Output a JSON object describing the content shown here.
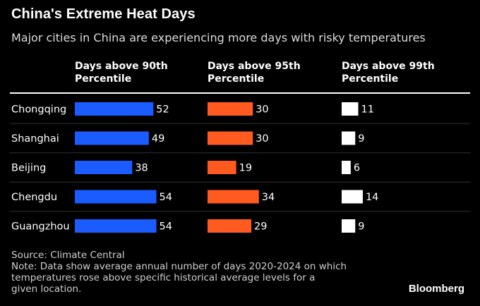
{
  "header": {
    "title": "China's Extreme Heat Days",
    "subtitle": "Major cities in China are experiencing more days with risky temperatures"
  },
  "colors": {
    "background": "#000000",
    "divider": "#ffffff",
    "row_separator": "#333333",
    "series": [
      "#1a5cff",
      "#ff5a1f",
      "#ffffff"
    ]
  },
  "chart_data": {
    "type": "bar",
    "orientation": "horizontal",
    "layout": "small-multiples",
    "categories": [
      "Chongqing",
      "Shanghai",
      "Beijing",
      "Chengdu",
      "Guangzhou"
    ],
    "series": [
      {
        "name": "Days above 90th Percentile",
        "values": [
          52,
          49,
          38,
          54,
          54
        ],
        "color": "#1a5cff"
      },
      {
        "name": "Days above 95th Percentile",
        "values": [
          30,
          30,
          19,
          34,
          29
        ],
        "color": "#ff5a1f"
      },
      {
        "name": "Days above 99th Percentile",
        "values": [
          11,
          9,
          6,
          14,
          9
        ],
        "color": "#ffffff"
      }
    ],
    "data_labels": true,
    "grid": false,
    "legend": "none"
  },
  "footer": {
    "source": "Source: Climate Central",
    "note_lines": [
      "Note: Data show average annual number of days 2020-2024 on which",
      "temperatures rose above specific historical average levels for a",
      "given location."
    ],
    "brand": "Bloomberg"
  }
}
